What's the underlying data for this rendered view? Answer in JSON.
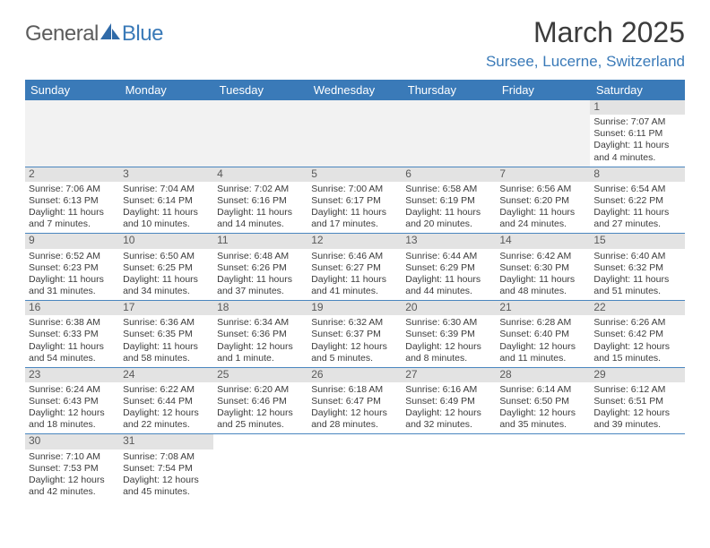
{
  "logo": {
    "general": "General",
    "blue": "Blue"
  },
  "title": "March 2025",
  "location": "Sursee, Lucerne, Switzerland",
  "day_headers": [
    "Sunday",
    "Monday",
    "Tuesday",
    "Wednesday",
    "Thursday",
    "Friday",
    "Saturday"
  ],
  "colors": {
    "header_bg": "#3a7ab8",
    "header_text": "#ffffff",
    "daynum_bg": "#e3e3e3",
    "cell_bg": "#ffffff",
    "blank_bg": "#f2f2f2",
    "border": "#4a86bf",
    "title_color": "#3c3c3c",
    "location_color": "#3a7ab8"
  },
  "weeks": [
    [
      null,
      null,
      null,
      null,
      null,
      null,
      {
        "n": "1",
        "sr": "7:07 AM",
        "ss": "6:11 PM",
        "dl": "11 hours and 4 minutes."
      }
    ],
    [
      {
        "n": "2",
        "sr": "7:06 AM",
        "ss": "6:13 PM",
        "dl": "11 hours and 7 minutes."
      },
      {
        "n": "3",
        "sr": "7:04 AM",
        "ss": "6:14 PM",
        "dl": "11 hours and 10 minutes."
      },
      {
        "n": "4",
        "sr": "7:02 AM",
        "ss": "6:16 PM",
        "dl": "11 hours and 14 minutes."
      },
      {
        "n": "5",
        "sr": "7:00 AM",
        "ss": "6:17 PM",
        "dl": "11 hours and 17 minutes."
      },
      {
        "n": "6",
        "sr": "6:58 AM",
        "ss": "6:19 PM",
        "dl": "11 hours and 20 minutes."
      },
      {
        "n": "7",
        "sr": "6:56 AM",
        "ss": "6:20 PM",
        "dl": "11 hours and 24 minutes."
      },
      {
        "n": "8",
        "sr": "6:54 AM",
        "ss": "6:22 PM",
        "dl": "11 hours and 27 minutes."
      }
    ],
    [
      {
        "n": "9",
        "sr": "6:52 AM",
        "ss": "6:23 PM",
        "dl": "11 hours and 31 minutes."
      },
      {
        "n": "10",
        "sr": "6:50 AM",
        "ss": "6:25 PM",
        "dl": "11 hours and 34 minutes."
      },
      {
        "n": "11",
        "sr": "6:48 AM",
        "ss": "6:26 PM",
        "dl": "11 hours and 37 minutes."
      },
      {
        "n": "12",
        "sr": "6:46 AM",
        "ss": "6:27 PM",
        "dl": "11 hours and 41 minutes."
      },
      {
        "n": "13",
        "sr": "6:44 AM",
        "ss": "6:29 PM",
        "dl": "11 hours and 44 minutes."
      },
      {
        "n": "14",
        "sr": "6:42 AM",
        "ss": "6:30 PM",
        "dl": "11 hours and 48 minutes."
      },
      {
        "n": "15",
        "sr": "6:40 AM",
        "ss": "6:32 PM",
        "dl": "11 hours and 51 minutes."
      }
    ],
    [
      {
        "n": "16",
        "sr": "6:38 AM",
        "ss": "6:33 PM",
        "dl": "11 hours and 54 minutes."
      },
      {
        "n": "17",
        "sr": "6:36 AM",
        "ss": "6:35 PM",
        "dl": "11 hours and 58 minutes."
      },
      {
        "n": "18",
        "sr": "6:34 AM",
        "ss": "6:36 PM",
        "dl": "12 hours and 1 minute."
      },
      {
        "n": "19",
        "sr": "6:32 AM",
        "ss": "6:37 PM",
        "dl": "12 hours and 5 minutes."
      },
      {
        "n": "20",
        "sr": "6:30 AM",
        "ss": "6:39 PM",
        "dl": "12 hours and 8 minutes."
      },
      {
        "n": "21",
        "sr": "6:28 AM",
        "ss": "6:40 PM",
        "dl": "12 hours and 11 minutes."
      },
      {
        "n": "22",
        "sr": "6:26 AM",
        "ss": "6:42 PM",
        "dl": "12 hours and 15 minutes."
      }
    ],
    [
      {
        "n": "23",
        "sr": "6:24 AM",
        "ss": "6:43 PM",
        "dl": "12 hours and 18 minutes."
      },
      {
        "n": "24",
        "sr": "6:22 AM",
        "ss": "6:44 PM",
        "dl": "12 hours and 22 minutes."
      },
      {
        "n": "25",
        "sr": "6:20 AM",
        "ss": "6:46 PM",
        "dl": "12 hours and 25 minutes."
      },
      {
        "n": "26",
        "sr": "6:18 AM",
        "ss": "6:47 PM",
        "dl": "12 hours and 28 minutes."
      },
      {
        "n": "27",
        "sr": "6:16 AM",
        "ss": "6:49 PM",
        "dl": "12 hours and 32 minutes."
      },
      {
        "n": "28",
        "sr": "6:14 AM",
        "ss": "6:50 PM",
        "dl": "12 hours and 35 minutes."
      },
      {
        "n": "29",
        "sr": "6:12 AM",
        "ss": "6:51 PM",
        "dl": "12 hours and 39 minutes."
      }
    ],
    [
      {
        "n": "30",
        "sr": "7:10 AM",
        "ss": "7:53 PM",
        "dl": "12 hours and 42 minutes."
      },
      {
        "n": "31",
        "sr": "7:08 AM",
        "ss": "7:54 PM",
        "dl": "12 hours and 45 minutes."
      },
      null,
      null,
      null,
      null,
      null
    ]
  ],
  "labels": {
    "sunrise": "Sunrise: ",
    "sunset": "Sunset: ",
    "daylight": "Daylight: "
  }
}
